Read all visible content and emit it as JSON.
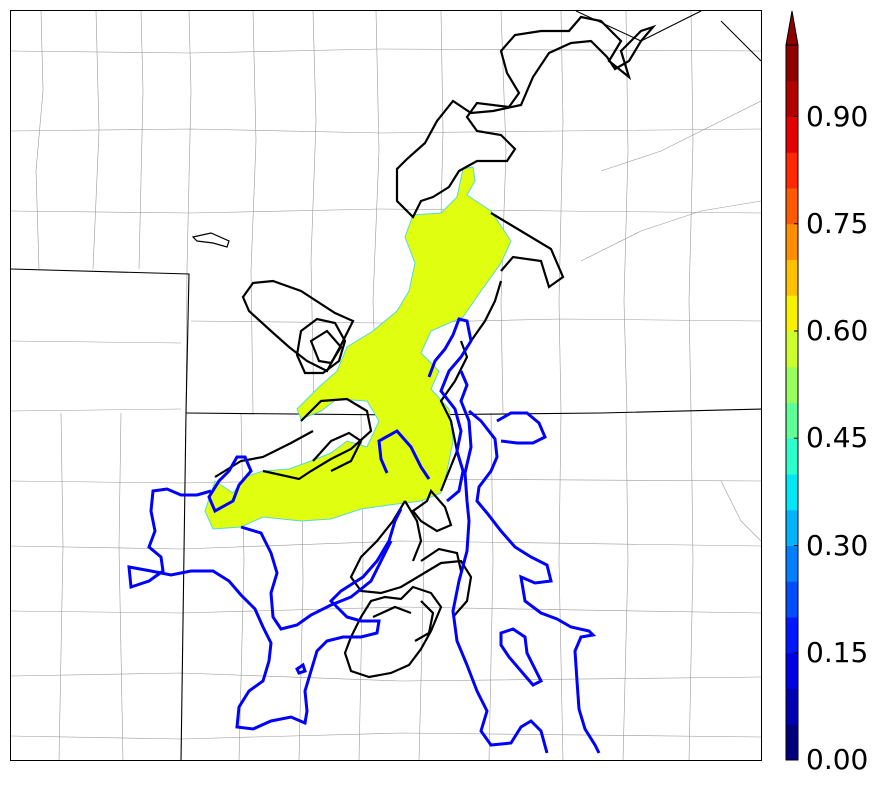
{
  "colorbar": {
    "ticks": [
      {
        "value": 0.0,
        "label": "0.00"
      },
      {
        "value": 0.15,
        "label": "0.15"
      },
      {
        "value": 0.3,
        "label": "0.30"
      },
      {
        "value": 0.45,
        "label": "0.45"
      },
      {
        "value": 0.6,
        "label": "0.60"
      },
      {
        "value": 0.75,
        "label": "0.75"
      },
      {
        "value": 0.9,
        "label": "0.90"
      }
    ],
    "min": 0.0,
    "max": 1.0,
    "levels": 20,
    "extend": "max",
    "colors": [
      "#00007f",
      "#0000b2",
      "#0000e5",
      "#0018ff",
      "#004cff",
      "#0080ff",
      "#00b4ff",
      "#00e8f7",
      "#2bffcc",
      "#5fff98",
      "#98ff5f",
      "#ccff2b",
      "#f7f200",
      "#ffc000",
      "#ff8e00",
      "#ff5a00",
      "#ff2800",
      "#e50000",
      "#b20000",
      "#8f0000"
    ]
  },
  "overlays": {
    "filled_region_value": 0.62,
    "filled_region_color": "#e0ff10",
    "contour_black_color": "#000000",
    "contour_blue_color": "#0000ff"
  }
}
